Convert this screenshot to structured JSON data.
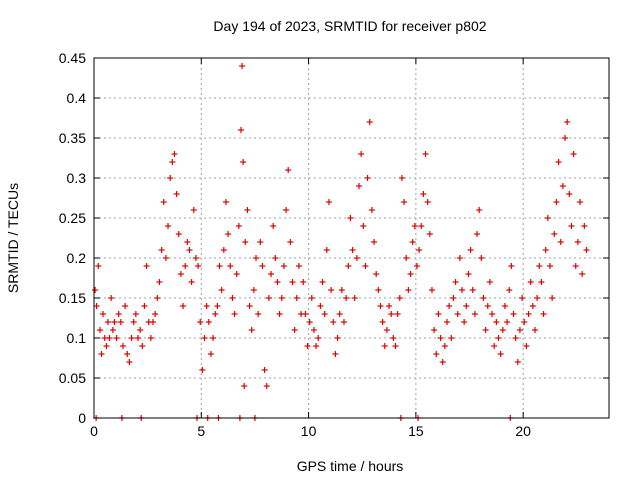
{
  "chart_data": {
    "type": "scatter",
    "title": "Day 194 of 2023, SRMTID for receiver p802",
    "xlabel": "GPS time / hours",
    "ylabel": "SRMTID / TECUs",
    "xlim": [
      0,
      24
    ],
    "ylim": [
      0,
      0.45
    ],
    "x_ticks": [
      0,
      5,
      10,
      15,
      20
    ],
    "x_tick_labels": [
      "0",
      "5",
      "10",
      "15",
      "20"
    ],
    "y_ticks": [
      0,
      0.05,
      0.1,
      0.15,
      0.2,
      0.25,
      0.3,
      0.35,
      0.4,
      0.45
    ],
    "y_tick_labels": [
      "0",
      "0.05",
      "0.1",
      "0.15",
      "0.2",
      "0.25",
      "0.3",
      "0.35",
      "0.4",
      "0.45"
    ],
    "grid": true,
    "marker": "+",
    "marker_color": "#e00000",
    "series": [
      {
        "name": "SRMTID",
        "points": [
          [
            0.05,
            0.16
          ],
          [
            0.12,
            0.14
          ],
          [
            0.2,
            0.19
          ],
          [
            0.28,
            0.11
          ],
          [
            0.35,
            0.08
          ],
          [
            0.42,
            0.13
          ],
          [
            0.5,
            0.1
          ],
          [
            0.58,
            0.09
          ],
          [
            0.65,
            0.12
          ],
          [
            0.72,
            0.1
          ],
          [
            0.8,
            0.15
          ],
          [
            0.88,
            0.11
          ],
          [
            0.95,
            0.12
          ],
          [
            1.05,
            0.1
          ],
          [
            1.15,
            0.13
          ],
          [
            1.25,
            0.12
          ],
          [
            1.35,
            0.09
          ],
          [
            1.45,
            0.14
          ],
          [
            1.55,
            0.08
          ],
          [
            1.65,
            0.07
          ],
          [
            1.75,
            0.1
          ],
          [
            1.85,
            0.12
          ],
          [
            1.95,
            0.13
          ],
          [
            2.05,
            0.1
          ],
          [
            2.15,
            0.11
          ],
          [
            2.25,
            0.09
          ],
          [
            2.35,
            0.14
          ],
          [
            2.45,
            0.19
          ],
          [
            2.55,
            0.12
          ],
          [
            2.65,
            0.1
          ],
          [
            2.75,
            0.12
          ],
          [
            2.85,
            0.13
          ],
          [
            2.95,
            0.15
          ],
          [
            3.05,
            0.17
          ],
          [
            3.15,
            0.21
          ],
          [
            3.25,
            0.27
          ],
          [
            3.35,
            0.2
          ],
          [
            3.45,
            0.24
          ],
          [
            3.55,
            0.3
          ],
          [
            3.65,
            0.32
          ],
          [
            3.75,
            0.33
          ],
          [
            3.85,
            0.28
          ],
          [
            3.95,
            0.23
          ],
          [
            4.05,
            0.18
          ],
          [
            4.15,
            0.14
          ],
          [
            4.25,
            0.19
          ],
          [
            4.35,
            0.22
          ],
          [
            4.45,
            0.21
          ],
          [
            4.55,
            0.17
          ],
          [
            4.65,
            0.26
          ],
          [
            4.75,
            0.2
          ],
          [
            4.85,
            0.19
          ],
          [
            4.95,
            0.12
          ],
          [
            5.05,
            0.06
          ],
          [
            5.15,
            0.1
          ],
          [
            5.25,
            0.14
          ],
          [
            5.35,
            0.12
          ],
          [
            5.45,
            0.08
          ],
          [
            5.55,
            0.1
          ],
          [
            5.65,
            0.13
          ],
          [
            5.75,
            0.14
          ],
          [
            5.85,
            0.19
          ],
          [
            5.95,
            0.16
          ],
          [
            6.05,
            0.21
          ],
          [
            6.15,
            0.27
          ],
          [
            6.25,
            0.23
          ],
          [
            6.35,
            0.19
          ],
          [
            6.45,
            0.15
          ],
          [
            6.55,
            0.13
          ],
          [
            6.65,
            0.18
          ],
          [
            6.75,
            0.24
          ],
          [
            6.85,
            0.36
          ],
          [
            6.9,
            0.44
          ],
          [
            6.95,
            0.32
          ],
          [
            7.0,
            0.04
          ],
          [
            7.05,
            0.22
          ],
          [
            7.15,
            0.26
          ],
          [
            7.25,
            0.14
          ],
          [
            7.35,
            0.11
          ],
          [
            7.45,
            0.16
          ],
          [
            7.55,
            0.2
          ],
          [
            7.65,
            0.13
          ],
          [
            7.75,
            0.22
          ],
          [
            7.85,
            0.19
          ],
          [
            7.95,
            0.06
          ],
          [
            8.05,
            0.04
          ],
          [
            8.15,
            0.15
          ],
          [
            8.25,
            0.18
          ],
          [
            8.35,
            0.24
          ],
          [
            8.45,
            0.2
          ],
          [
            8.55,
            0.17
          ],
          [
            8.65,
            0.13
          ],
          [
            8.75,
            0.15
          ],
          [
            8.85,
            0.19
          ],
          [
            8.95,
            0.26
          ],
          [
            9.05,
            0.31
          ],
          [
            9.15,
            0.22
          ],
          [
            9.25,
            0.17
          ],
          [
            9.35,
            0.11
          ],
          [
            9.45,
            0.15
          ],
          [
            9.55,
            0.19
          ],
          [
            9.65,
            0.13
          ],
          [
            9.75,
            0.17
          ],
          [
            9.85,
            0.13
          ],
          [
            9.95,
            0.09
          ],
          [
            10.05,
            0.12
          ],
          [
            10.15,
            0.15
          ],
          [
            10.25,
            0.11
          ],
          [
            10.35,
            0.09
          ],
          [
            10.45,
            0.1
          ],
          [
            10.55,
            0.14
          ],
          [
            10.65,
            0.17
          ],
          [
            10.75,
            0.13
          ],
          [
            10.85,
            0.21
          ],
          [
            10.95,
            0.27
          ],
          [
            11.05,
            0.16
          ],
          [
            11.15,
            0.12
          ],
          [
            11.25,
            0.08
          ],
          [
            11.35,
            0.1
          ],
          [
            11.45,
            0.13
          ],
          [
            11.55,
            0.16
          ],
          [
            11.65,
            0.12
          ],
          [
            11.75,
            0.15
          ],
          [
            11.85,
            0.19
          ],
          [
            11.95,
            0.25
          ],
          [
            12.05,
            0.21
          ],
          [
            12.15,
            0.15
          ],
          [
            12.25,
            0.2
          ],
          [
            12.35,
            0.29
          ],
          [
            12.45,
            0.33
          ],
          [
            12.55,
            0.24
          ],
          [
            12.65,
            0.19
          ],
          [
            12.75,
            0.3
          ],
          [
            12.85,
            0.37
          ],
          [
            12.95,
            0.26
          ],
          [
            13.05,
            0.22
          ],
          [
            13.15,
            0.18
          ],
          [
            13.25,
            0.16
          ],
          [
            13.35,
            0.14
          ],
          [
            13.45,
            0.12
          ],
          [
            13.55,
            0.09
          ],
          [
            13.65,
            0.11
          ],
          [
            13.75,
            0.14
          ],
          [
            13.85,
            0.13
          ],
          [
            13.95,
            0.1
          ],
          [
            14.05,
            0.09
          ],
          [
            14.15,
            0.13
          ],
          [
            14.25,
            0.15
          ],
          [
            14.35,
            0.3
          ],
          [
            14.45,
            0.27
          ],
          [
            14.55,
            0.2
          ],
          [
            14.65,
            0.16
          ],
          [
            14.75,
            0.18
          ],
          [
            14.85,
            0.22
          ],
          [
            14.95,
            0.24
          ],
          [
            15.05,
            0.19
          ],
          [
            15.15,
            0.21
          ],
          [
            15.25,
            0.24
          ],
          [
            15.35,
            0.28
          ],
          [
            15.45,
            0.33
          ],
          [
            15.55,
            0.27
          ],
          [
            15.65,
            0.23
          ],
          [
            15.75,
            0.16
          ],
          [
            15.85,
            0.11
          ],
          [
            15.95,
            0.08
          ],
          [
            16.05,
            0.13
          ],
          [
            16.15,
            0.1
          ],
          [
            16.25,
            0.07
          ],
          [
            16.35,
            0.09
          ],
          [
            16.45,
            0.12
          ],
          [
            16.55,
            0.14
          ],
          [
            16.65,
            0.1
          ],
          [
            16.75,
            0.15
          ],
          [
            16.85,
            0.17
          ],
          [
            16.95,
            0.13
          ],
          [
            17.05,
            0.2
          ],
          [
            17.15,
            0.16
          ],
          [
            17.25,
            0.12
          ],
          [
            17.35,
            0.14
          ],
          [
            17.45,
            0.18
          ],
          [
            17.55,
            0.21
          ],
          [
            17.65,
            0.16
          ],
          [
            17.75,
            0.13
          ],
          [
            17.85,
            0.23
          ],
          [
            17.95,
            0.26
          ],
          [
            18.05,
            0.2
          ],
          [
            18.15,
            0.15
          ],
          [
            18.25,
            0.11
          ],
          [
            18.35,
            0.14
          ],
          [
            18.45,
            0.17
          ],
          [
            18.55,
            0.13
          ],
          [
            18.65,
            0.09
          ],
          [
            18.75,
            0.12
          ],
          [
            18.85,
            0.1
          ],
          [
            18.95,
            0.08
          ],
          [
            19.05,
            0.11
          ],
          [
            19.15,
            0.14
          ],
          [
            19.25,
            0.12
          ],
          [
            19.35,
            0.16
          ],
          [
            19.45,
            0.19
          ],
          [
            19.55,
            0.13
          ],
          [
            19.65,
            0.1
          ],
          [
            19.75,
            0.07
          ],
          [
            19.85,
            0.11
          ],
          [
            19.95,
            0.15
          ],
          [
            20.05,
            0.12
          ],
          [
            20.15,
            0.09
          ],
          [
            20.25,
            0.13
          ],
          [
            20.35,
            0.17
          ],
          [
            20.45,
            0.14
          ],
          [
            20.55,
            0.11
          ],
          [
            20.65,
            0.15
          ],
          [
            20.75,
            0.19
          ],
          [
            20.85,
            0.17
          ],
          [
            20.95,
            0.13
          ],
          [
            21.05,
            0.21
          ],
          [
            21.15,
            0.25
          ],
          [
            21.25,
            0.19
          ],
          [
            21.35,
            0.15
          ],
          [
            21.45,
            0.23
          ],
          [
            21.55,
            0.27
          ],
          [
            21.65,
            0.32
          ],
          [
            21.75,
            0.22
          ],
          [
            21.85,
            0.29
          ],
          [
            21.95,
            0.35
          ],
          [
            22.05,
            0.37
          ],
          [
            22.15,
            0.28
          ],
          [
            22.25,
            0.24
          ],
          [
            22.35,
            0.33
          ],
          [
            22.45,
            0.19
          ],
          [
            22.55,
            0.22
          ],
          [
            22.65,
            0.27
          ],
          [
            22.75,
            0.18
          ],
          [
            22.85,
            0.24
          ],
          [
            22.95,
            0.21
          ],
          [
            0.1,
            0.0
          ],
          [
            1.3,
            0.0
          ],
          [
            2.2,
            0.0
          ],
          [
            4.8,
            0.0
          ],
          [
            5.3,
            0.0
          ],
          [
            5.8,
            0.0
          ],
          [
            6.8,
            0.0
          ],
          [
            7.5,
            0.0
          ],
          [
            14.3,
            0.0
          ],
          [
            15.1,
            0.0
          ],
          [
            19.4,
            0.0
          ]
        ]
      }
    ]
  }
}
